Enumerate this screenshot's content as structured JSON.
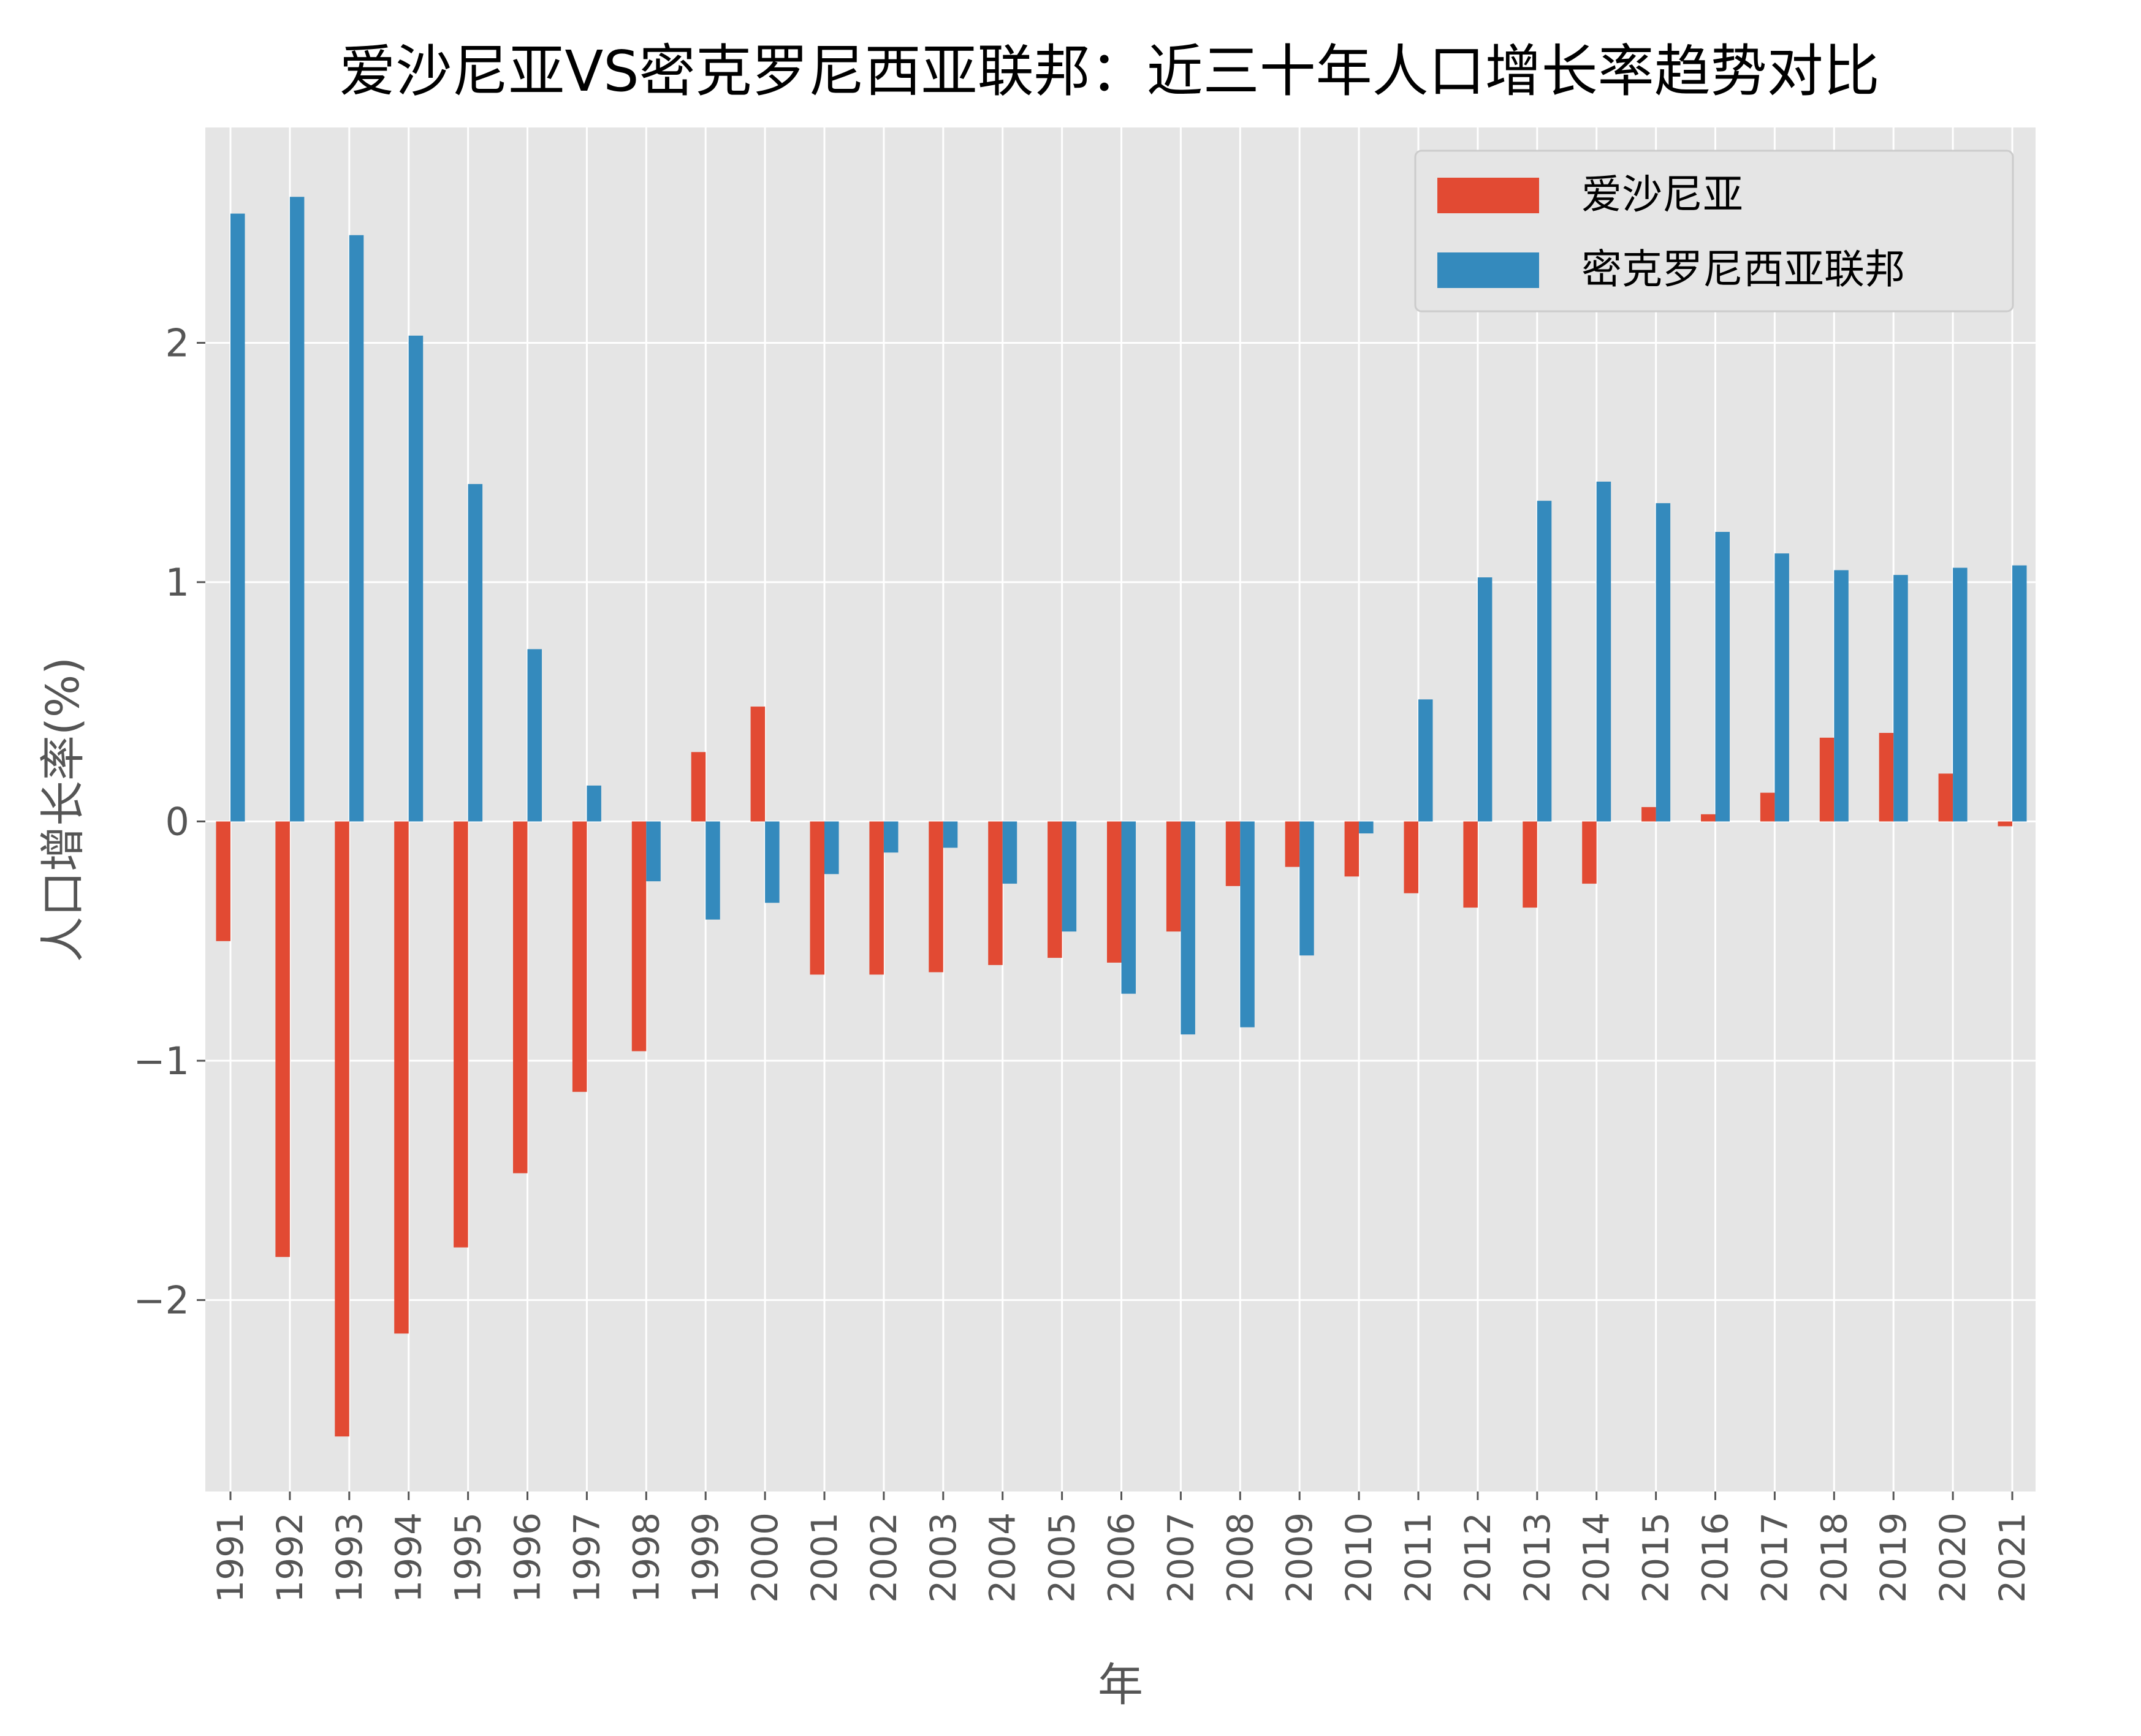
{
  "chart_data": {
    "type": "bar",
    "title": "爱沙尼亚VS密克罗尼西亚联邦：近三十年人口增长率趋势对比",
    "xlabel": "年",
    "ylabel": "人口增长率(%)",
    "ylim": [
      -2.8,
      2.9
    ],
    "yticks": [
      -2,
      -1,
      0,
      1,
      2
    ],
    "ytick_labels": [
      "−2",
      "−1",
      "0",
      "1",
      "2"
    ],
    "grid": true,
    "legend_position": "top-right",
    "categories": [
      "1991",
      "1992",
      "1993",
      "1994",
      "1995",
      "1996",
      "1997",
      "1998",
      "1999",
      "2000",
      "2001",
      "2002",
      "2003",
      "2004",
      "2005",
      "2006",
      "2007",
      "2008",
      "2009",
      "2010",
      "2011",
      "2012",
      "2013",
      "2014",
      "2015",
      "2016",
      "2017",
      "2018",
      "2019",
      "2020",
      "2021"
    ],
    "series": [
      {
        "name": "爱沙尼亚",
        "color": "#E24A33",
        "values": [
          -0.5,
          -1.82,
          -2.57,
          -2.14,
          -1.78,
          -1.47,
          -1.13,
          -0.96,
          0.29,
          0.48,
          -0.64,
          -0.64,
          -0.63,
          -0.6,
          -0.57,
          -0.59,
          -0.46,
          -0.27,
          -0.19,
          -0.23,
          -0.3,
          -0.36,
          -0.36,
          -0.26,
          0.06,
          0.03,
          0.12,
          0.35,
          0.37,
          0.2,
          -0.02
        ]
      },
      {
        "name": "密克罗尼西亚联邦",
        "color": "#348ABD",
        "values": [
          2.54,
          2.61,
          2.45,
          2.03,
          1.41,
          0.72,
          0.15,
          -0.25,
          -0.41,
          -0.34,
          -0.22,
          -0.13,
          -0.11,
          -0.26,
          -0.46,
          -0.72,
          -0.89,
          -0.86,
          -0.56,
          -0.05,
          0.51,
          1.02,
          1.34,
          1.42,
          1.33,
          1.21,
          1.12,
          1.05,
          1.03,
          1.06,
          1.07
        ]
      }
    ]
  },
  "colors": {
    "plot_background": "#E5E5E5",
    "grid": "#FFFFFF",
    "tick_label": "#555555",
    "title": "#000000"
  }
}
